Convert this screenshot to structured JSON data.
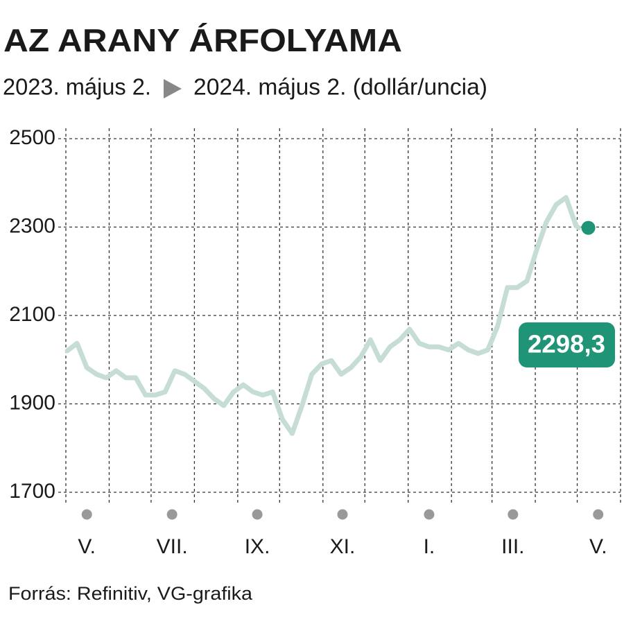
{
  "chart_data": {
    "type": "line",
    "title": "AZ ARANY ÁRFOLYAMA",
    "subtitle_start": "2023. május 2.",
    "subtitle_end": "2024. május 2. (dollár/uncia)",
    "source": "Forrás: Refinitiv, VG-grafika",
    "x": [
      "2023-05-02",
      "2023-05-09",
      "2023-05-16",
      "2023-05-23",
      "2023-05-30",
      "2023-06-06",
      "2023-06-13",
      "2023-06-20",
      "2023-06-27",
      "2023-07-04",
      "2023-07-11",
      "2023-07-18",
      "2023-07-25",
      "2023-08-01",
      "2023-08-08",
      "2023-08-15",
      "2023-08-22",
      "2023-08-29",
      "2023-09-05",
      "2023-09-12",
      "2023-09-19",
      "2023-09-26",
      "2023-10-03",
      "2023-10-10",
      "2023-10-17",
      "2023-10-24",
      "2023-10-31",
      "2023-11-07",
      "2023-11-14",
      "2023-11-21",
      "2023-11-28",
      "2023-12-05",
      "2023-12-12",
      "2023-12-19",
      "2023-12-26",
      "2024-01-02",
      "2024-01-09",
      "2024-01-16",
      "2024-01-23",
      "2024-01-30",
      "2024-02-06",
      "2024-02-13",
      "2024-02-20",
      "2024-02-27",
      "2024-03-05",
      "2024-03-12",
      "2024-03-19",
      "2024-03-26",
      "2024-04-02",
      "2024-04-09",
      "2024-04-16",
      "2024-04-23",
      "2024-04-30",
      "2024-05-02"
    ],
    "series": [
      {
        "color": "#c5ddd5",
        "values": [
          2020,
          2037,
          1982,
          1967,
          1959,
          1975,
          1959,
          1959,
          1920,
          1920,
          1927,
          1975,
          1967,
          1951,
          1935,
          1912,
          1896,
          1927,
          1943,
          1927,
          1920,
          1927,
          1865,
          1833,
          1896,
          1967,
          1990,
          1998,
          1967,
          1982,
          2006,
          2045,
          1998,
          2029,
          2045,
          2069,
          2037,
          2029,
          2029,
          2022,
          2037,
          2022,
          2014,
          2022,
          2076,
          2163,
          2163,
          2178,
          2249,
          2312,
          2351,
          2367,
          2304,
          2298.3
        ]
      }
    ],
    "last_value": 2298.3,
    "last_value_label": "2298,3",
    "last_color": "#1f9477",
    "xlim": [
      "2023-05-01",
      "2024-06-01"
    ],
    "xticks": [
      {
        "value": "2023-05-16",
        "label": "V."
      },
      {
        "value": "2023-07-16",
        "label": "VII."
      },
      {
        "value": "2023-09-15",
        "label": "IX."
      },
      {
        "value": "2023-11-15",
        "label": "XI."
      },
      {
        "value": "2024-01-16",
        "label": "I."
      },
      {
        "value": "2024-03-16",
        "label": "III."
      },
      {
        "value": "2024-05-16",
        "label": "V."
      }
    ],
    "xgrid": [
      "2023-05-01",
      "2023-06-01",
      "2023-07-01",
      "2023-08-01",
      "2023-09-01",
      "2023-10-01",
      "2023-11-01",
      "2023-12-01",
      "2024-01-01",
      "2024-02-01",
      "2024-03-01",
      "2024-04-01",
      "2024-05-01",
      "2024-06-01"
    ],
    "ylim": [
      1700,
      2500
    ],
    "yticks": [
      1700,
      1900,
      2100,
      2300,
      2500
    ],
    "grid": true
  }
}
